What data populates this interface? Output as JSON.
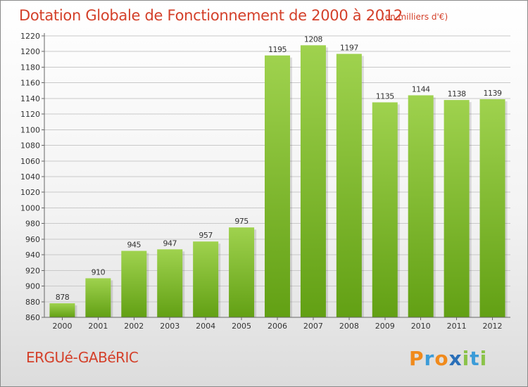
{
  "title": "Dotation Globale de Fonctionnement de 2000 à 2012",
  "subtitle": "(en milliers d'€)",
  "commune": "ERGUé-GABéRIC",
  "logo": {
    "text": "Proxiti"
  },
  "colors": {
    "accent": "#d4402a",
    "bar_light": "#9fd24e",
    "bar_dark": "#62a014",
    "grid": "#c9c9c9"
  },
  "chart_data": {
    "type": "bar",
    "title": "Dotation Globale de Fonctionnement de 2000 à 2012",
    "subtitle": "(en milliers d'€)",
    "xlabel": "",
    "ylabel": "",
    "categories": [
      "2000",
      "2001",
      "2002",
      "2003",
      "2004",
      "2005",
      "2006",
      "2007",
      "2008",
      "2009",
      "2010",
      "2011",
      "2012"
    ],
    "values": [
      878,
      910,
      945,
      947,
      957,
      975,
      1195,
      1208,
      1197,
      1135,
      1144,
      1138,
      1139
    ],
    "ylim": [
      860,
      1220
    ],
    "yticks": [
      860,
      880,
      900,
      920,
      940,
      960,
      980,
      1000,
      1020,
      1040,
      1060,
      1080,
      1100,
      1120,
      1140,
      1160,
      1180,
      1200,
      1220
    ],
    "grid": true,
    "data_labels": true
  }
}
